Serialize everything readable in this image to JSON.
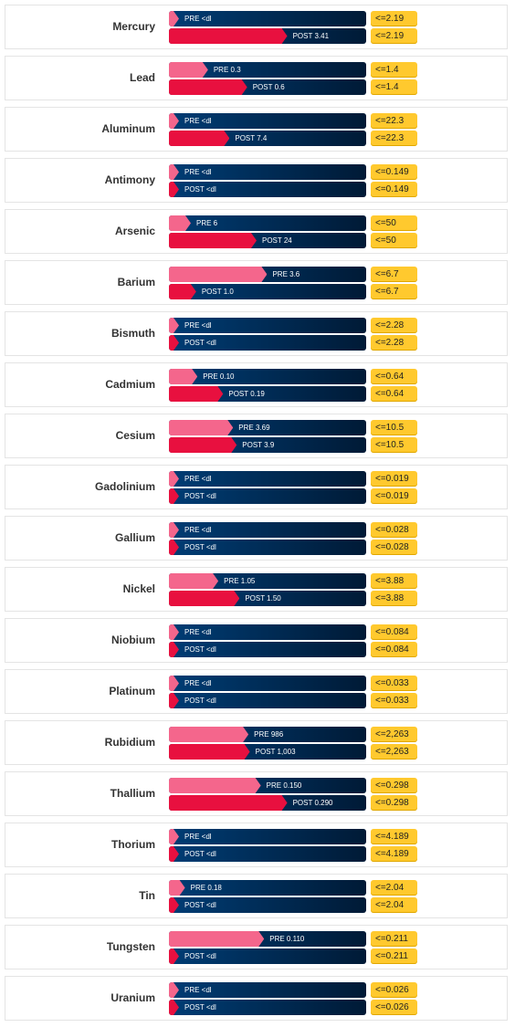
{
  "chart_data": {
    "type": "bar",
    "series": [
      {
        "label_prefix": "PRE",
        "color": "#f4668c"
      },
      {
        "label_prefix": "POST",
        "color": "#e8103f"
      }
    ],
    "bar_background": "#003d75",
    "limit_badge_color": "#ffc92e",
    "rows": [
      {
        "name": "Mercury",
        "pre": {
          "text": "PRE <dl",
          "value": 0
        },
        "post": {
          "text": "POST 3.41",
          "value": 3.41
        },
        "limit": "<=2.19",
        "limit_value": 2.19
      },
      {
        "name": "Lead",
        "pre": {
          "text": "PRE 0.3",
          "value": 0.3
        },
        "post": {
          "text": "POST 0.6",
          "value": 0.6
        },
        "limit": "<=1.4",
        "limit_value": 1.4
      },
      {
        "name": "Aluminum",
        "pre": {
          "text": "PRE <dl",
          "value": 0
        },
        "post": {
          "text": "POST 7.4",
          "value": 7.4
        },
        "limit": "<=22.3",
        "limit_value": 22.3
      },
      {
        "name": "Antimony",
        "pre": {
          "text": "PRE <dl",
          "value": 0
        },
        "post": {
          "text": "POST <dl",
          "value": 0
        },
        "limit": "<=0.149",
        "limit_value": 0.149
      },
      {
        "name": "Arsenic",
        "pre": {
          "text": "PRE 6",
          "value": 6
        },
        "post": {
          "text": "POST 24",
          "value": 24
        },
        "limit": "<=50",
        "limit_value": 50
      },
      {
        "name": "Barium",
        "pre": {
          "text": "PRE 3.6",
          "value": 3.6
        },
        "post": {
          "text": "POST 1.0",
          "value": 1.0
        },
        "limit": "<=6.7",
        "limit_value": 6.7
      },
      {
        "name": "Bismuth",
        "pre": {
          "text": "PRE <dl",
          "value": 0
        },
        "post": {
          "text": "POST <dl",
          "value": 0
        },
        "limit": "<=2.28",
        "limit_value": 2.28
      },
      {
        "name": "Cadmium",
        "pre": {
          "text": "PRE 0.10",
          "value": 0.1
        },
        "post": {
          "text": "POST 0.19",
          "value": 0.19
        },
        "limit": "<=0.64",
        "limit_value": 0.64
      },
      {
        "name": "Cesium",
        "pre": {
          "text": "PRE 3.69",
          "value": 3.69
        },
        "post": {
          "text": "POST 3.9",
          "value": 3.9
        },
        "limit": "<=10.5",
        "limit_value": 10.5
      },
      {
        "name": "Gadolinium",
        "pre": {
          "text": "PRE <dl",
          "value": 0
        },
        "post": {
          "text": "POST <dl",
          "value": 0
        },
        "limit": "<=0.019",
        "limit_value": 0.019
      },
      {
        "name": "Gallium",
        "pre": {
          "text": "PRE <dl",
          "value": 0
        },
        "post": {
          "text": "POST <dl",
          "value": 0
        },
        "limit": "<=0.028",
        "limit_value": 0.028
      },
      {
        "name": "Nickel",
        "pre": {
          "text": "PRE 1.05",
          "value": 1.05
        },
        "post": {
          "text": "POST 1.50",
          "value": 1.5
        },
        "limit": "<=3.88",
        "limit_value": 3.88
      },
      {
        "name": "Niobium",
        "pre": {
          "text": "PRE <dl",
          "value": 0
        },
        "post": {
          "text": "POST <dl",
          "value": 0
        },
        "limit": "<=0.084",
        "limit_value": 0.084
      },
      {
        "name": "Platinum",
        "pre": {
          "text": "PRE <dl",
          "value": 0
        },
        "post": {
          "text": "POST <dl",
          "value": 0
        },
        "limit": "<=0.033",
        "limit_value": 0.033
      },
      {
        "name": "Rubidium",
        "pre": {
          "text": "PRE 986",
          "value": 986
        },
        "post": {
          "text": "POST 1,003",
          "value": 1003
        },
        "limit": "<=2,263",
        "limit_value": 2263
      },
      {
        "name": "Thallium",
        "pre": {
          "text": "PRE 0.150",
          "value": 0.15
        },
        "post": {
          "text": "POST 0.290",
          "value": 0.29
        },
        "limit": "<=0.298",
        "limit_value": 0.298
      },
      {
        "name": "Thorium",
        "pre": {
          "text": "PRE <dl",
          "value": 0
        },
        "post": {
          "text": "POST <dl",
          "value": 0
        },
        "limit": "<=4.189",
        "limit_value": 4.189
      },
      {
        "name": "Tin",
        "pre": {
          "text": "PRE 0.18",
          "value": 0.18
        },
        "post": {
          "text": "POST <dl",
          "value": 0
        },
        "limit": "<=2.04",
        "limit_value": 2.04
      },
      {
        "name": "Tungsten",
        "pre": {
          "text": "PRE 0.110",
          "value": 0.11
        },
        "post": {
          "text": "POST <dl",
          "value": 0
        },
        "limit": "<=0.211",
        "limit_value": 0.211
      },
      {
        "name": "Uranium",
        "pre": {
          "text": "PRE <dl",
          "value": 0
        },
        "post": {
          "text": "POST <dl",
          "value": 0
        },
        "limit": "<=0.026",
        "limit_value": 0.026
      }
    ]
  }
}
